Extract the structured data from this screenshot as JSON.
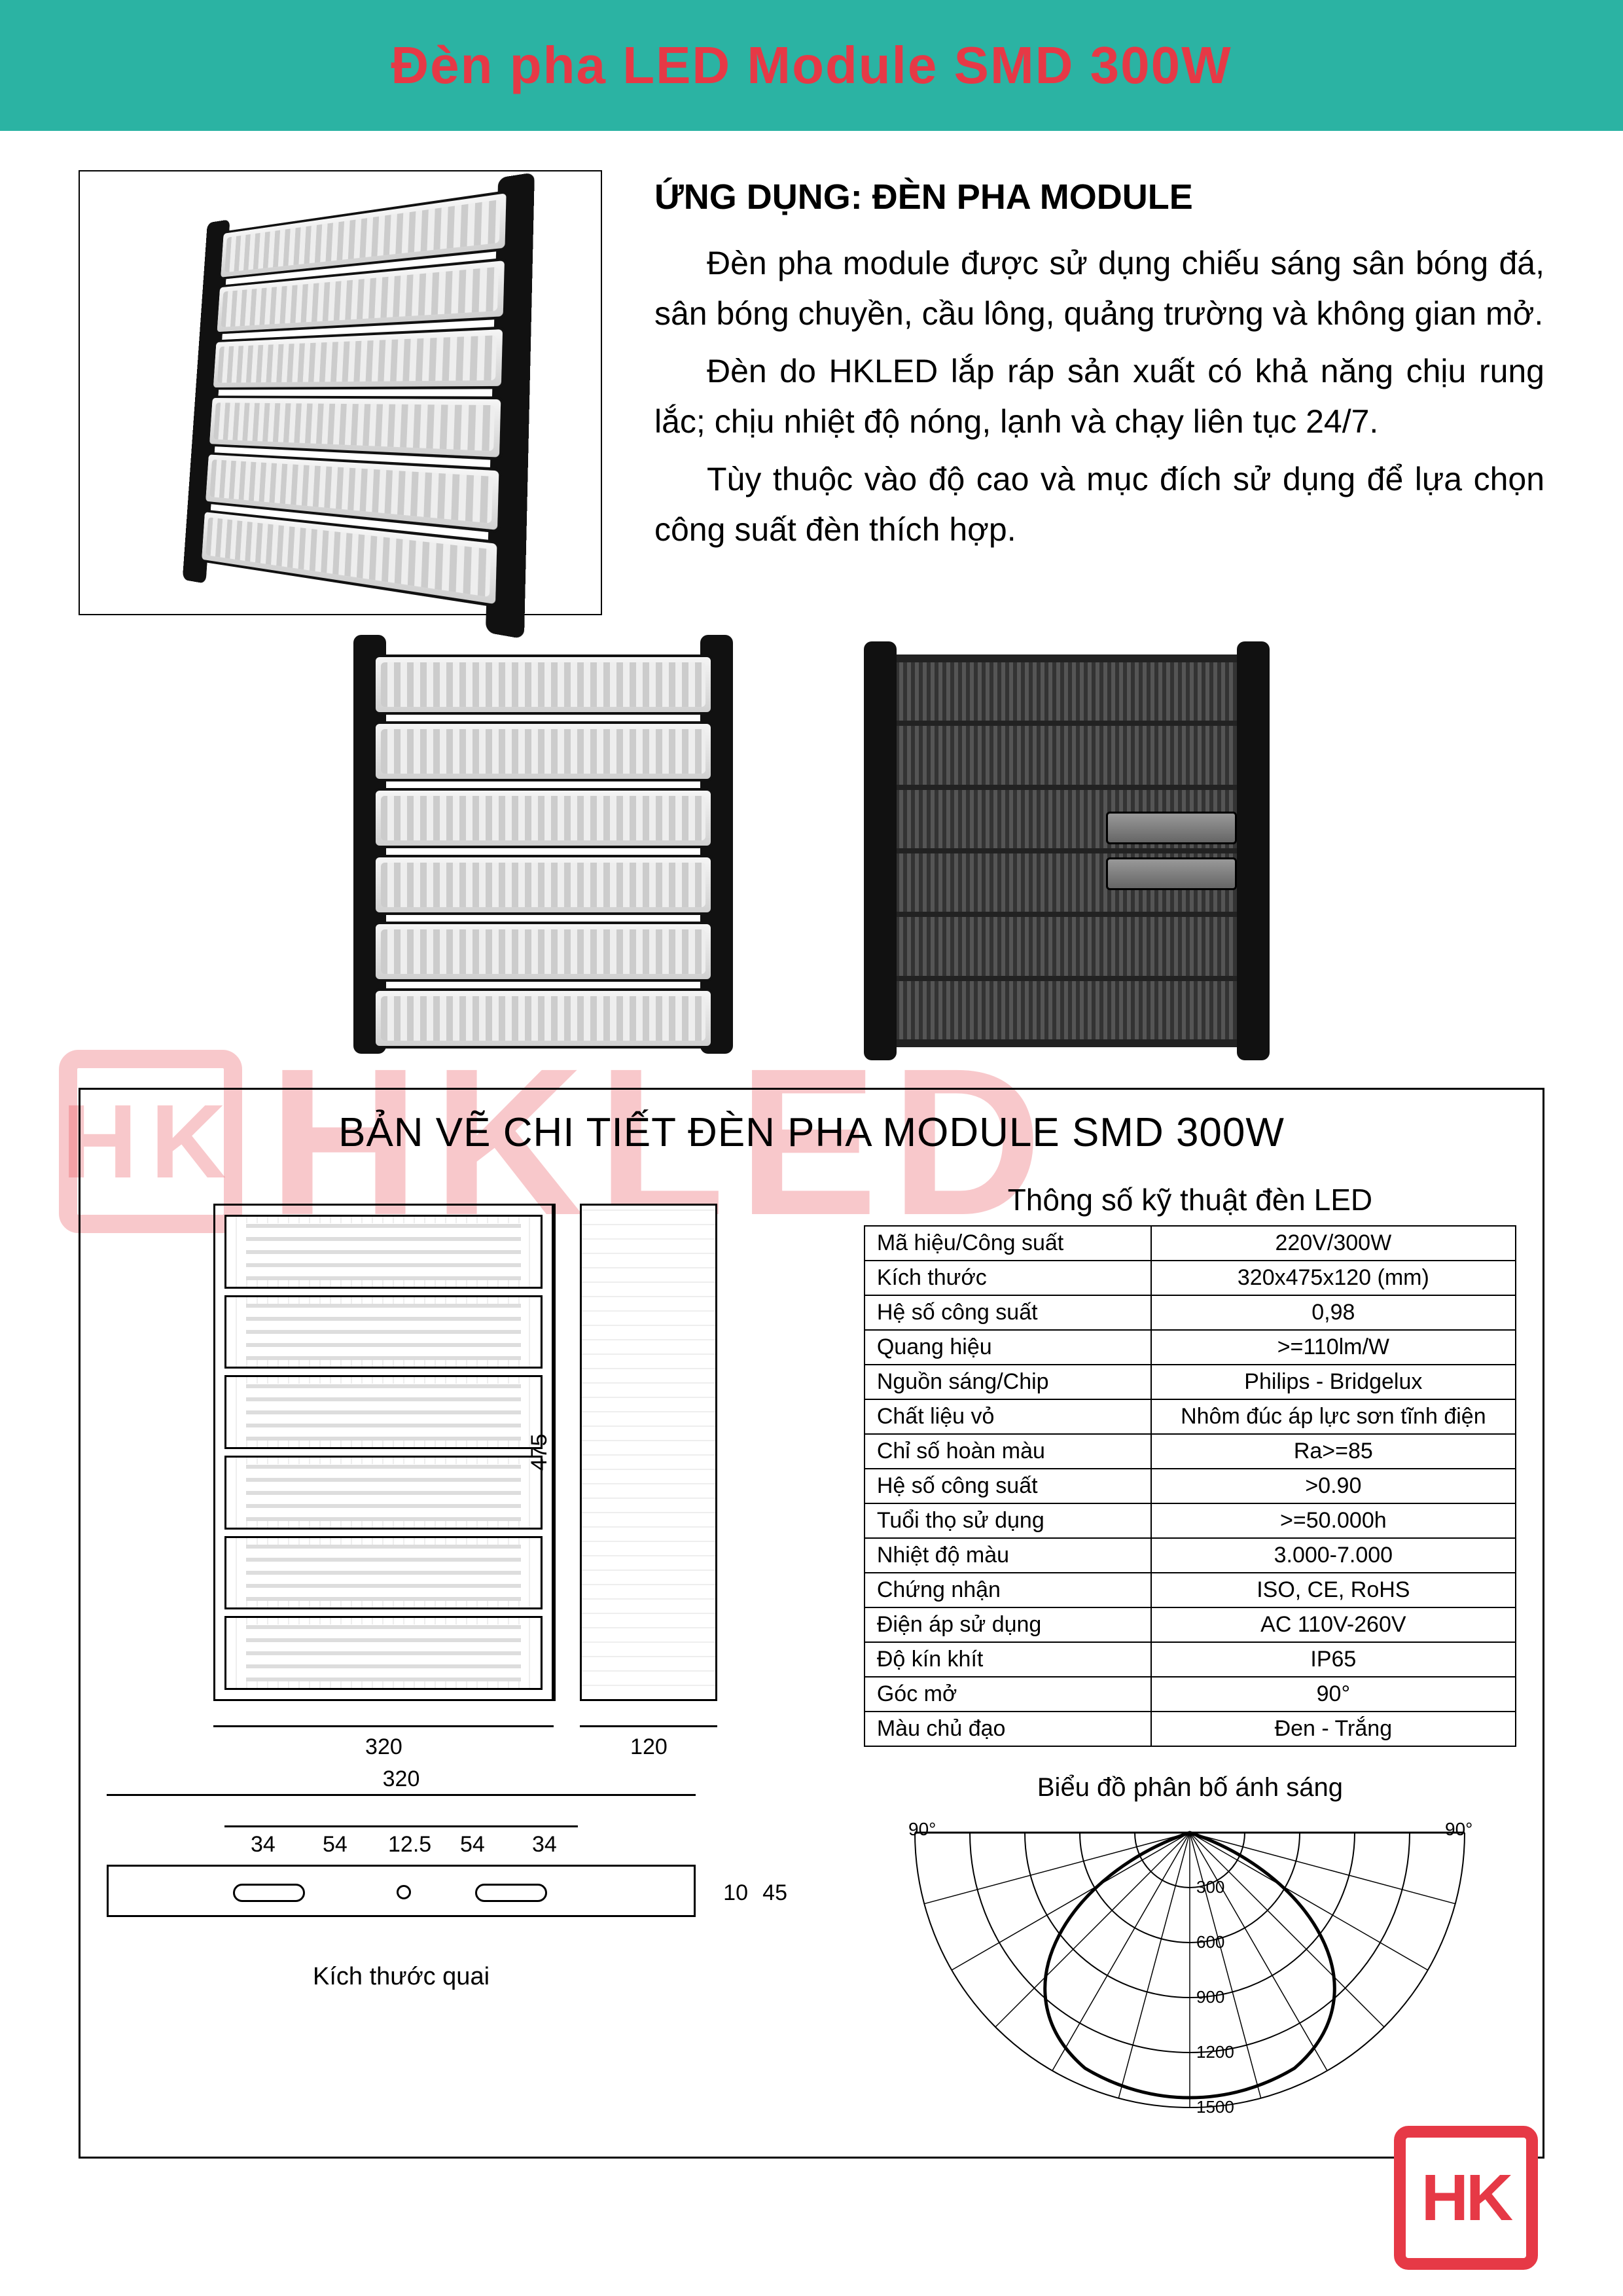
{
  "header": {
    "title": "Đèn pha LED Module SMD 300W"
  },
  "description": {
    "heading": "ỨNG DỤNG: ĐÈN PHA MODULE",
    "p1": "Đèn pha module được sử dụng chiếu sáng sân bóng đá, sân bóng chuyền, cầu lông, quảng trường và không gian mở.",
    "p2": "Đèn do HKLED lắp ráp sản xuất có khả năng chịu rung lắc; chịu nhiệt độ nóng, lạnh và chạy liên tục 24/7.",
    "p3": "Tùy thuộc vào độ cao và mục đích sử dụng để lựa chọn công suất đèn thích hợp."
  },
  "watermark": {
    "logo_text": "HK",
    "text": "HKLED"
  },
  "drawing": {
    "title": "BẢN VẼ CHI TIẾT ĐÈN PHA MODULE SMD 300W",
    "spec_title": "Thông số kỹ thuật đèn LED",
    "dims": {
      "width": "320",
      "height": "475",
      "depth": "120",
      "bracket_width": "320",
      "bracket_h": "45",
      "bracket_slot_h": "10",
      "d1": "34",
      "d2": "54",
      "d3": "12.5",
      "d4": "54",
      "d5": "34"
    },
    "bracket_caption": "Kích thước quai",
    "polar_title": "Biểu đồ phân bố ánh sáng",
    "polar": {
      "left_label": "90°",
      "right_label": "90°",
      "rings": [
        "300",
        "600",
        "900",
        "1200",
        "1500"
      ]
    }
  },
  "specs": [
    {
      "k": "Mã hiệu/Công suất",
      "v": "220V/300W"
    },
    {
      "k": "Kích thước",
      "v": "320x475x120 (mm)"
    },
    {
      "k": "Hệ số công suất",
      "v": "0,98"
    },
    {
      "k": "Quang hiệu",
      "v": ">=110lm/W"
    },
    {
      "k": "Nguồn sáng/Chip",
      "v": "Philips - Bridgelux"
    },
    {
      "k": "Chất liệu vỏ",
      "v": "Nhôm đúc áp lực sơn tĩnh điện"
    },
    {
      "k": "Chỉ số hoàn màu",
      "v": "Ra>=85"
    },
    {
      "k": "Hệ số công suất",
      "v": ">0.90"
    },
    {
      "k": "Tuổi thọ sử dụng",
      "v": ">=50.000h"
    },
    {
      "k": "Nhiệt độ màu",
      "v": "3.000-7.000"
    },
    {
      "k": "Chứng nhận",
      "v": "ISO, CE, RoHS"
    },
    {
      "k": "Điện áp sử dụng",
      "v": "AC 110V-260V"
    },
    {
      "k": "Độ kín khít",
      "v": "IP65"
    },
    {
      "k": "Góc mở",
      "v": "90°"
    },
    {
      "k": "Màu chủ đạo",
      "v": "Đen - Trắng"
    }
  ],
  "colors": {
    "accent": "#e63946",
    "band": "#2bb3a3",
    "text": "#000000",
    "bg": "#ffffff"
  },
  "corner_logo": {
    "text": "HK"
  }
}
